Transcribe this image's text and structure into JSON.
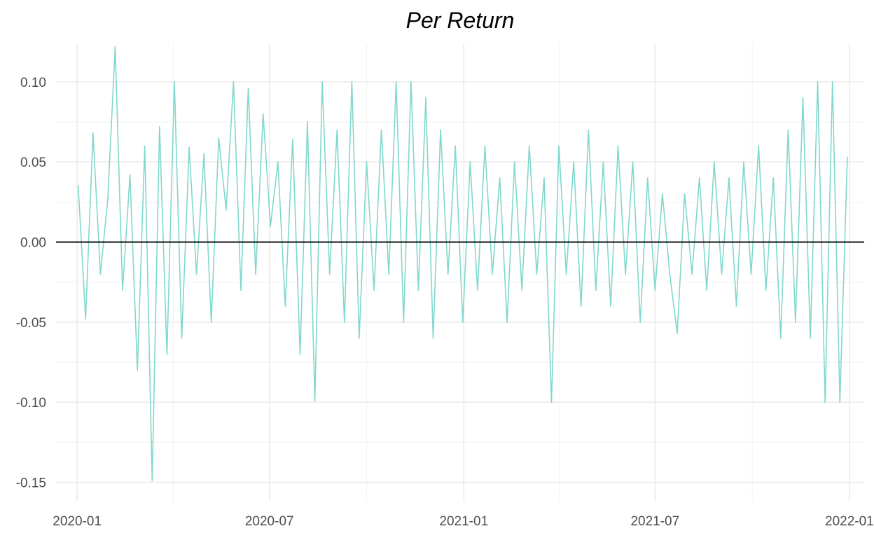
{
  "chart_data": {
    "type": "line",
    "title": "Per Return",
    "xlabel": "",
    "ylabel": "",
    "x_range": [
      "2019-12-12",
      "2022-01-15"
    ],
    "xlim": [
      "2019-12-12",
      "2022-01-15"
    ],
    "ylim": [
      -0.162,
      0.124
    ],
    "x_ticks": [
      "2020-01-01",
      "2020-07-01",
      "2021-01-01",
      "2021-07-01",
      "2022-01-01"
    ],
    "x_tick_labels": [
      "2020-01",
      "2020-07",
      "2021-01",
      "2021-07",
      "2022-01"
    ],
    "y_ticks": [
      0.1,
      0.05,
      0.0,
      -0.05,
      -0.1,
      -0.15
    ],
    "y_tick_labels": [
      "0.10",
      "0.05",
      "0.00",
      "-0.05",
      "-0.10",
      "-0.15"
    ],
    "hline": 0.0,
    "grid": true,
    "legend": "none",
    "series_color": "#80d8cc",
    "series": [
      {
        "x": [
          "2020-01-02",
          "2020-01-09",
          "2020-01-16",
          "2020-01-23",
          "2020-01-30",
          "2020-02-06",
          "2020-02-13",
          "2020-02-20",
          "2020-02-27",
          "2020-03-05",
          "2020-03-12",
          "2020-03-19",
          "2020-03-26",
          "2020-04-02",
          "2020-04-09",
          "2020-04-16",
          "2020-04-23",
          "2020-04-30",
          "2020-05-07",
          "2020-05-14",
          "2020-05-21",
          "2020-05-28",
          "2020-06-04",
          "2020-06-11",
          "2020-06-18",
          "2020-06-25",
          "2020-07-02",
          "2020-07-09",
          "2020-07-16",
          "2020-07-23",
          "2020-07-30",
          "2020-08-06",
          "2020-08-13",
          "2020-08-20",
          "2020-08-27",
          "2020-09-03",
          "2020-09-10",
          "2020-09-17",
          "2020-09-24",
          "2020-10-01",
          "2020-10-08",
          "2020-10-15",
          "2020-10-22",
          "2020-10-29",
          "2020-11-05",
          "2020-11-12",
          "2020-11-19",
          "2020-11-26",
          "2020-12-03",
          "2020-12-10",
          "2020-12-17",
          "2020-12-24",
          "2020-12-31",
          "2021-01-07",
          "2021-01-14",
          "2021-01-21",
          "2021-01-28",
          "2021-02-04",
          "2021-02-11",
          "2021-02-18",
          "2021-02-25",
          "2021-03-04",
          "2021-03-11",
          "2021-03-18",
          "2021-03-25",
          "2021-04-01",
          "2021-04-08",
          "2021-04-15",
          "2021-04-22",
          "2021-04-29",
          "2021-05-06",
          "2021-05-13",
          "2021-05-20",
          "2021-05-27",
          "2021-06-03",
          "2021-06-10",
          "2021-06-17",
          "2021-06-24",
          "2021-07-01",
          "2021-07-08",
          "2021-07-15",
          "2021-07-22",
          "2021-07-29",
          "2021-08-05",
          "2021-08-12",
          "2021-08-19",
          "2021-08-26",
          "2021-09-02",
          "2021-09-09",
          "2021-09-16",
          "2021-09-23",
          "2021-09-30",
          "2021-10-07",
          "2021-10-14",
          "2021-10-21",
          "2021-10-28",
          "2021-11-04",
          "2021-11-11",
          "2021-11-18",
          "2021-11-25",
          "2021-12-02",
          "2021-12-09",
          "2021-12-16",
          "2021-12-23",
          "2021-12-30"
        ],
        "y": [
          0.035,
          -0.048,
          0.068,
          -0.02,
          0.027,
          0.122,
          -0.03,
          0.042,
          -0.08,
          0.06,
          -0.149,
          0.072,
          -0.07,
          0.1,
          -0.06,
          0.059,
          -0.02,
          0.055,
          -0.05,
          0.065,
          0.02,
          0.1,
          -0.03,
          0.096,
          -0.02,
          0.08,
          0.01,
          0.05,
          -0.04,
          0.064,
          -0.07,
          0.075,
          -0.099,
          0.1,
          -0.02,
          0.07,
          -0.05,
          0.1,
          -0.06,
          0.05,
          -0.03,
          0.07,
          -0.02,
          0.1,
          -0.05,
          0.1,
          -0.03,
          0.09,
          -0.06,
          0.07,
          -0.02,
          0.06,
          -0.05,
          0.05,
          -0.03,
          0.06,
          -0.02,
          0.04,
          -0.05,
          0.05,
          -0.03,
          0.06,
          -0.02,
          0.04,
          -0.1,
          0.06,
          -0.02,
          0.05,
          -0.04,
          0.07,
          -0.03,
          0.05,
          -0.04,
          0.06,
          -0.02,
          0.05,
          -0.05,
          0.04,
          -0.03,
          0.03,
          -0.02,
          -0.057,
          0.03,
          -0.02,
          0.04,
          -0.03,
          0.05,
          -0.02,
          0.04,
          -0.04,
          0.05,
          -0.02,
          0.06,
          -0.03,
          0.04,
          -0.06,
          0.07,
          -0.05,
          0.09,
          -0.06,
          0.1,
          -0.1,
          0.1,
          -0.1,
          0.053
        ]
      }
    ]
  }
}
